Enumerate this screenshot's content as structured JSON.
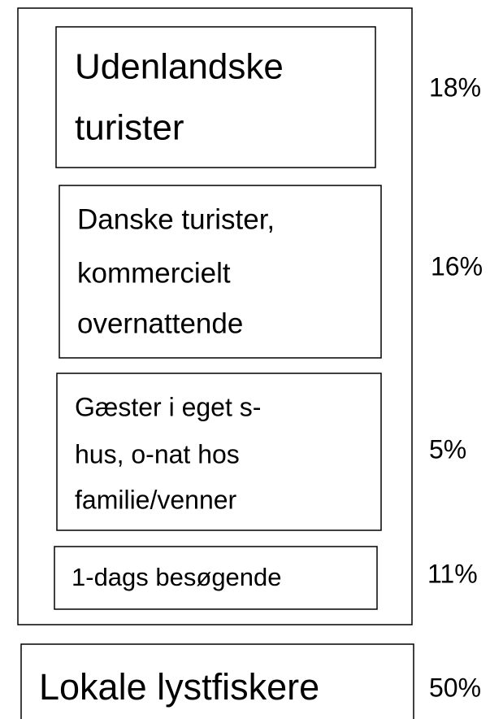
{
  "outer_group": {
    "boxes": [
      {
        "lines": [
          "Udenlandske",
          "turister"
        ],
        "share": "18%"
      },
      {
        "lines": [
          "Danske turister,",
          "kommercielt",
          "overnattende"
        ],
        "share": "16%"
      },
      {
        "lines": [
          "Gæster i eget s-",
          "hus, o-nat hos",
          "familie/venner"
        ],
        "share": "5%"
      },
      {
        "lines": [
          "1-dags besøgende"
        ],
        "share": "11%"
      }
    ]
  },
  "bottom_box": {
    "lines": [
      "Lokale lystfiskere"
    ],
    "share": "50%"
  }
}
